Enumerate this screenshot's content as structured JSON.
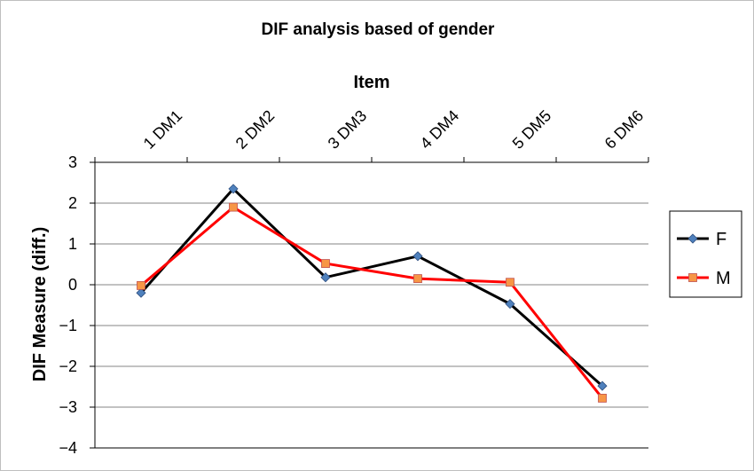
{
  "chart_data": {
    "type": "line",
    "title": "DIF analysis based of gender",
    "xlabel": "Item",
    "ylabel": "DIF Measure (diff.)",
    "categories": [
      "1 DM1",
      "2 DM2",
      "3 DM3",
      "4 DM4",
      "5 DM5",
      "6 DM6"
    ],
    "ylim": [
      -4,
      3
    ],
    "yticks": [
      "3",
      "2",
      "1",
      "0",
      "-1",
      "-2",
      "-3",
      "-4"
    ],
    "x_axis_position": "top",
    "grid": "horizontal",
    "legend_position": "right",
    "series": [
      {
        "name": "F",
        "values": [
          -0.2,
          2.35,
          0.18,
          0.7,
          -0.47,
          -2.48
        ],
        "color": "#000000",
        "marker": "diamond",
        "marker_color": "#4f81bd"
      },
      {
        "name": "M",
        "values": [
          -0.02,
          1.9,
          0.52,
          0.15,
          0.06,
          -2.78
        ],
        "color": "#ff0000",
        "marker": "square",
        "marker_color": "#f79646"
      }
    ]
  }
}
